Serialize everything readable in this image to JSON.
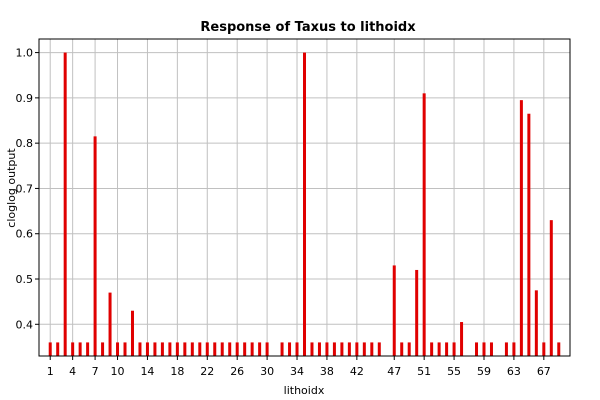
{
  "chart_data": {
    "type": "bar",
    "title": "Response of Taxus to lithoidx",
    "xlabel": "lithoidx",
    "ylabel": "cloglog output",
    "ylim": [
      0.33,
      1.03
    ],
    "yticks": [
      0.4,
      0.5,
      0.6,
      0.7,
      0.8,
      0.9,
      1.0
    ],
    "ytick_labels": [
      "0.4",
      "0.5",
      "0.6",
      "0.7",
      "0.8",
      "0.9",
      "1.0"
    ],
    "xlim": [
      -0.5,
      70.5
    ],
    "xticks": [
      1,
      4,
      7,
      10,
      14,
      18,
      22,
      26,
      30,
      34,
      38,
      42,
      47,
      51,
      55,
      59,
      63,
      67
    ],
    "xtick_labels": [
      "1",
      "4",
      "7",
      "10",
      "14",
      "18",
      "22",
      "26",
      "30",
      "34",
      "38",
      "42",
      "47",
      "51",
      "55",
      "59",
      "63",
      "67"
    ],
    "grid": true,
    "bar_color": "#e00000",
    "x": [
      1,
      2,
      3,
      4,
      5,
      6,
      7,
      8,
      9,
      10,
      11,
      12,
      13,
      14,
      15,
      16,
      17,
      18,
      19,
      20,
      21,
      22,
      23,
      24,
      25,
      26,
      27,
      28,
      29,
      30,
      32,
      33,
      34,
      35,
      36,
      37,
      38,
      39,
      40,
      41,
      42,
      43,
      44,
      45,
      47,
      48,
      49,
      50,
      51,
      52,
      53,
      54,
      55,
      56,
      58,
      59,
      60,
      62,
      63,
      64,
      65,
      66,
      67,
      68,
      69
    ],
    "values": [
      0.36,
      0.36,
      1.0,
      0.36,
      0.36,
      0.36,
      0.815,
      0.36,
      0.47,
      0.36,
      0.36,
      0.43,
      0.36,
      0.36,
      0.36,
      0.36,
      0.36,
      0.36,
      0.36,
      0.36,
      0.36,
      0.36,
      0.36,
      0.36,
      0.36,
      0.36,
      0.36,
      0.36,
      0.36,
      0.36,
      0.36,
      0.36,
      0.36,
      1.0,
      0.36,
      0.36,
      0.36,
      0.36,
      0.36,
      0.36,
      0.36,
      0.36,
      0.36,
      0.36,
      0.53,
      0.36,
      0.36,
      0.52,
      0.91,
      0.36,
      0.36,
      0.36,
      0.36,
      0.405,
      0.36,
      0.36,
      0.36,
      0.36,
      0.36,
      0.895,
      0.865,
      0.475,
      0.36,
      0.63,
      0.36
    ]
  }
}
